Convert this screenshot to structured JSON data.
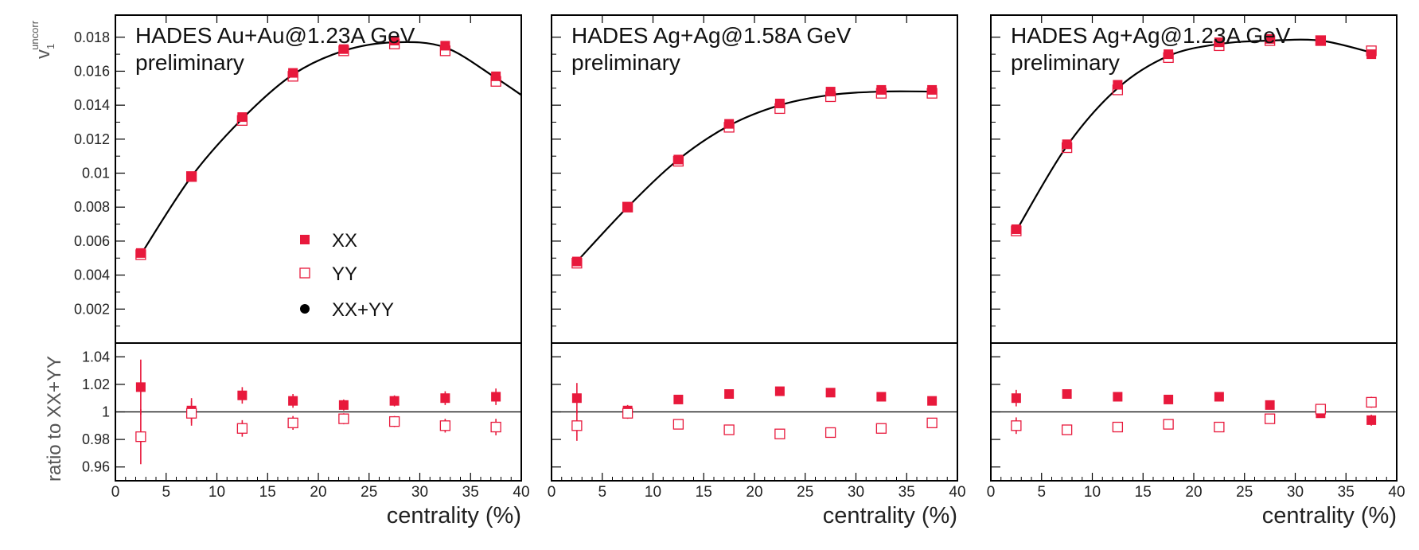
{
  "figure": {
    "top_ylabel_main": "v",
    "top_ylabel_sub": "1",
    "top_ylabel_sup": "uncorr",
    "bottom_ylabel": "ratio to XX+YY"
  },
  "colors": {
    "xx": "#e8193c",
    "yy": "#e8193c",
    "fit": "#000000",
    "frame": "#000000",
    "reference_line": "#000000"
  },
  "chart_data": [
    {
      "type": "scatter",
      "title": "HADES Au+Au@1.23A GeV",
      "subtitle": "preliminary",
      "xlabel": "centrality (%)",
      "xlim": [
        0,
        40
      ],
      "x_ticks": [
        0,
        5,
        10,
        15,
        20,
        25,
        30,
        35,
        40
      ],
      "top": {
        "ylabel": "v1 uncorr",
        "ylim": [
          0,
          0.0193
        ],
        "y_ticks": [
          0.002,
          0.004,
          0.006,
          0.008,
          0.01,
          0.012,
          0.014,
          0.016,
          0.018
        ],
        "y_tick_labels": [
          "0.002",
          "0.004",
          "0.006",
          "0.008",
          "0.01",
          "0.012",
          "0.014",
          "0.016",
          "0.018"
        ],
        "x": [
          2.5,
          7.5,
          12.5,
          17.5,
          22.5,
          27.5,
          32.5,
          37.5
        ],
        "series": [
          {
            "name": "XX",
            "marker": "filled-square",
            "values": [
              0.0053,
              0.0098,
              0.0133,
              0.0159,
              0.0173,
              0.0178,
              0.0175,
              0.0157
            ]
          },
          {
            "name": "YY",
            "marker": "open-square",
            "values": [
              0.0052,
              0.0098,
              0.0131,
              0.0157,
              0.0172,
              0.0176,
              0.0172,
              0.0154
            ]
          },
          {
            "name": "XX+YY",
            "marker": "filled-circle",
            "values": [
              0.0052,
              0.0098,
              0.0132,
              0.0158,
              0.0172,
              0.0177,
              0.0174,
              0.0156
            ]
          }
        ],
        "fit_curve": {
          "x": [
            2.5,
            7.5,
            12.5,
            17.5,
            22.5,
            27.5,
            32.5,
            37.5,
            40
          ],
          "y": [
            0.0052,
            0.0098,
            0.0132,
            0.0158,
            0.0172,
            0.0177,
            0.0174,
            0.0156,
            0.0146
          ]
        }
      },
      "bottom": {
        "ylabel": "ratio to XX+YY",
        "ylim": [
          0.95,
          1.05
        ],
        "y_ticks": [
          0.96,
          0.98,
          1.0,
          1.02,
          1.04
        ],
        "y_tick_labels": [
          "0.96",
          "0.98",
          "1",
          "1.02",
          "1.04"
        ],
        "reference": 1.0,
        "x": [
          2.5,
          7.5,
          12.5,
          17.5,
          22.5,
          27.5,
          32.5,
          37.5
        ],
        "series": [
          {
            "name": "XX",
            "marker": "filled-square",
            "values": [
              1.018,
              1.001,
              1.012,
              1.008,
              1.005,
              1.008,
              1.01,
              1.011
            ],
            "errors": [
              0.02,
              0.009,
              0.006,
              0.005,
              0.004,
              0.004,
              0.005,
              0.006
            ]
          },
          {
            "name": "YY",
            "marker": "open-square",
            "values": [
              0.982,
              0.999,
              0.988,
              0.992,
              0.995,
              0.993,
              0.99,
              0.989
            ],
            "errors": [
              0.02,
              0.009,
              0.006,
              0.005,
              0.004,
              0.004,
              0.005,
              0.006
            ]
          }
        ]
      },
      "legend": {
        "position": "lower-middle",
        "entries": [
          {
            "label": "XX",
            "marker": "filled-square"
          },
          {
            "label": "YY",
            "marker": "open-square"
          },
          {
            "label": "XX+YY",
            "marker": "filled-circle"
          }
        ]
      }
    },
    {
      "type": "scatter",
      "title": "HADES Ag+Ag@1.58A GeV",
      "subtitle": "preliminary",
      "xlabel": "centrality (%)",
      "xlim": [
        0,
        40
      ],
      "x_ticks": [
        0,
        5,
        10,
        15,
        20,
        25,
        30,
        35,
        40
      ],
      "top": {
        "ylim": [
          0,
          0.0193
        ],
        "y_ticks": [
          0.002,
          0.004,
          0.006,
          0.008,
          0.01,
          0.012,
          0.014,
          0.016,
          0.018
        ],
        "x": [
          2.5,
          7.5,
          12.5,
          17.5,
          22.5,
          27.5,
          32.5,
          37.5
        ],
        "series": [
          {
            "name": "XX",
            "marker": "filled-square",
            "values": [
              0.0048,
              0.008,
              0.0108,
              0.0129,
              0.0141,
              0.0148,
              0.0149,
              0.0149
            ]
          },
          {
            "name": "YY",
            "marker": "open-square",
            "values": [
              0.0047,
              0.008,
              0.0107,
              0.0127,
              0.0138,
              0.0145,
              0.0147,
              0.0147
            ]
          },
          {
            "name": "XX+YY",
            "marker": "filled-circle",
            "values": [
              0.0048,
              0.008,
              0.0108,
              0.0128,
              0.014,
              0.0146,
              0.0148,
              0.0148
            ]
          }
        ],
        "fit_curve": {
          "x": [
            2.5,
            7.5,
            12.5,
            17.5,
            22.5,
            27.5,
            32.5,
            37.5
          ],
          "y": [
            0.0048,
            0.008,
            0.0108,
            0.0128,
            0.014,
            0.0146,
            0.0148,
            0.0148
          ]
        }
      },
      "bottom": {
        "ylim": [
          0.95,
          1.05
        ],
        "y_ticks": [
          0.96,
          0.98,
          1.0,
          1.02,
          1.04
        ],
        "reference": 1.0,
        "x": [
          2.5,
          7.5,
          12.5,
          17.5,
          22.5,
          27.5,
          32.5,
          37.5
        ],
        "series": [
          {
            "name": "XX",
            "marker": "filled-square",
            "values": [
              1.01,
              1.001,
              1.009,
              1.013,
              1.015,
              1.014,
              1.011,
              1.008
            ],
            "errors": [
              0.011,
              0.004,
              0.003,
              0.002,
              0.002,
              0.002,
              0.002,
              0.003
            ]
          },
          {
            "name": "YY",
            "marker": "open-square",
            "values": [
              0.99,
              0.999,
              0.991,
              0.987,
              0.984,
              0.985,
              0.988,
              0.992
            ],
            "errors": [
              0.011,
              0.004,
              0.003,
              0.002,
              0.002,
              0.002,
              0.002,
              0.003
            ]
          }
        ]
      }
    },
    {
      "type": "scatter",
      "title": "HADES Ag+Ag@1.23A GeV",
      "subtitle": "preliminary",
      "xlabel": "centrality (%)",
      "xlim": [
        0,
        40
      ],
      "x_ticks": [
        0,
        5,
        10,
        15,
        20,
        25,
        30,
        35,
        40
      ],
      "top": {
        "ylim": [
          0,
          0.0193
        ],
        "y_ticks": [
          0.002,
          0.004,
          0.006,
          0.008,
          0.01,
          0.012,
          0.014,
          0.016,
          0.018
        ],
        "x": [
          2.5,
          7.5,
          12.5,
          17.5,
          22.5,
          27.5,
          32.5,
          37.5
        ],
        "series": [
          {
            "name": "XX",
            "marker": "filled-square",
            "values": [
              0.0067,
              0.0117,
              0.0152,
              0.017,
              0.0177,
              0.0179,
              0.0178,
              0.017
            ]
          },
          {
            "name": "YY",
            "marker": "open-square",
            "values": [
              0.0066,
              0.0115,
              0.0149,
              0.0168,
              0.0175,
              0.0178,
              0.0178,
              0.0172
            ]
          },
          {
            "name": "XX+YY",
            "marker": "filled-circle",
            "values": [
              0.0066,
              0.0116,
              0.015,
              0.0169,
              0.0176,
              0.0178,
              0.0178,
              0.0171
            ]
          }
        ],
        "fit_curve": {
          "x": [
            2.5,
            7.5,
            12.5,
            17.5,
            22.5,
            27.5,
            32.5,
            37.5
          ],
          "y": [
            0.0066,
            0.0116,
            0.015,
            0.0169,
            0.0176,
            0.0178,
            0.0178,
            0.0171
          ]
        }
      },
      "bottom": {
        "ylim": [
          0.95,
          1.05
        ],
        "y_ticks": [
          0.96,
          0.98,
          1.0,
          1.02,
          1.04
        ],
        "reference": 1.0,
        "x": [
          2.5,
          7.5,
          12.5,
          17.5,
          22.5,
          27.5,
          32.5,
          37.5
        ],
        "series": [
          {
            "name": "XX",
            "marker": "filled-square",
            "values": [
              1.01,
              1.013,
              1.011,
              1.009,
              1.011,
              1.005,
              0.999,
              0.994
            ],
            "errors": [
              0.006,
              0.002,
              0.002,
              0.002,
              0.002,
              0.002,
              0.002,
              0.004
            ]
          },
          {
            "name": "YY",
            "marker": "open-square",
            "values": [
              0.99,
              0.987,
              0.989,
              0.991,
              0.989,
              0.995,
              1.002,
              1.007
            ],
            "errors": [
              0.006,
              0.002,
              0.002,
              0.002,
              0.002,
              0.002,
              0.002,
              0.004
            ]
          }
        ]
      }
    }
  ]
}
